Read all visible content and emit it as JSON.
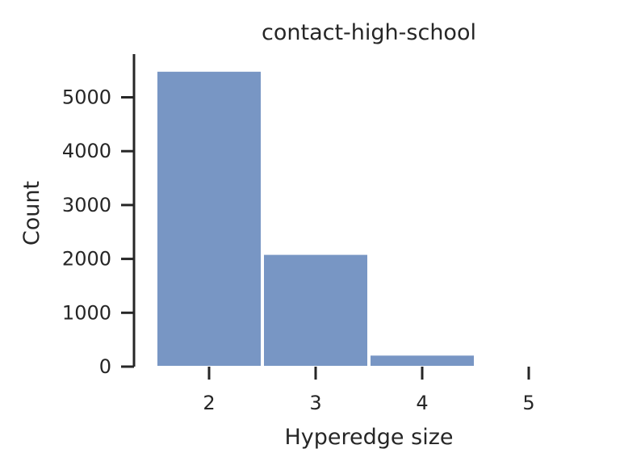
{
  "chart_data": {
    "type": "bar",
    "title": "contact-high-school",
    "xlabel": "Hyperedge size",
    "ylabel": "Count",
    "categories": [
      "2",
      "3",
      "4",
      "5"
    ],
    "values": [
      5490,
      2090,
      220,
      0
    ],
    "yticks": [
      "0",
      "1000",
      "2000",
      "3000",
      "4000",
      "5000"
    ],
    "ylim": [
      0,
      5800
    ],
    "grid": false,
    "legend": "none",
    "bar_color": "#7896c4",
    "bar_edge_color": "#ffffff",
    "axis_color": "#262626",
    "text_color": "#262626"
  }
}
